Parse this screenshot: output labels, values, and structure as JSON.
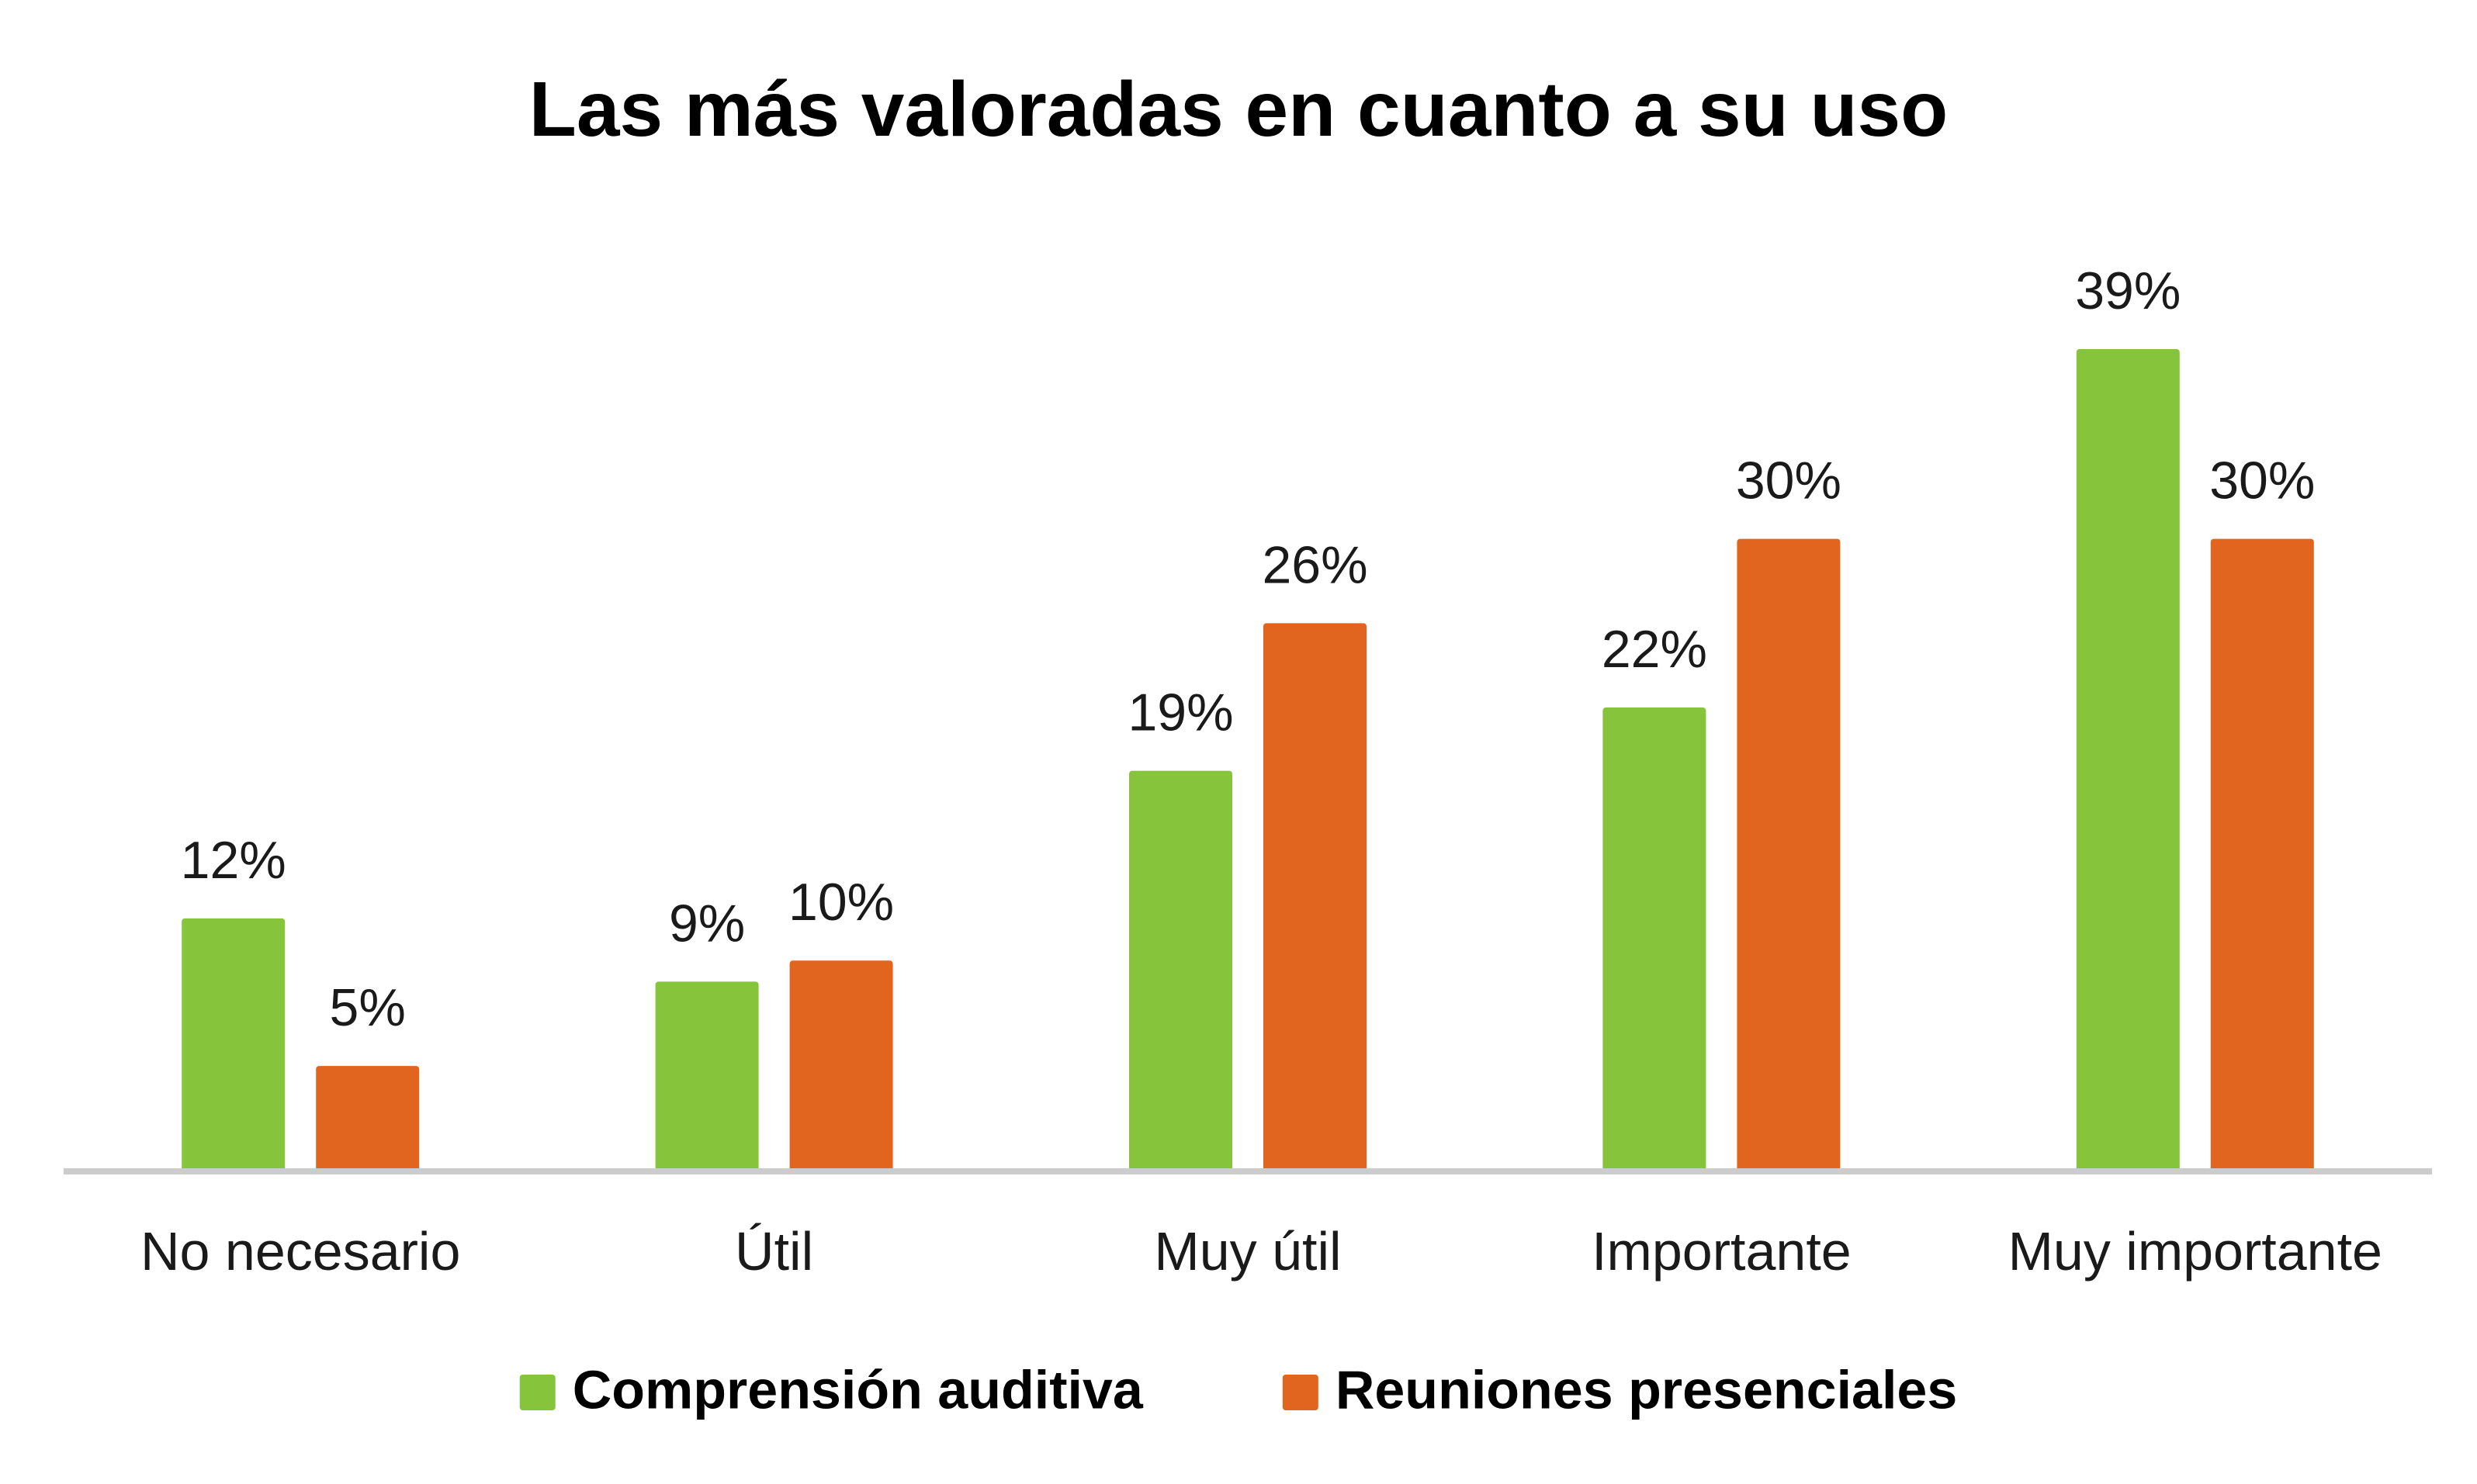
{
  "chart_data": {
    "type": "bar",
    "title": "Las más valoradas en cuanto a su uso",
    "xlabel": "",
    "ylabel": "",
    "categories": [
      "No necesario",
      "Útil",
      "Muy útil",
      "Importante",
      "Muy importante"
    ],
    "series": [
      {
        "name": "Comprensión auditiva",
        "values": [
          12,
          9,
          19,
          22,
          39
        ],
        "labels": [
          "12%",
          "9%",
          "19%",
          "22%",
          "39%"
        ],
        "color": "#86C53B"
      },
      {
        "name": "Reuniones presenciales",
        "values": [
          5,
          10,
          26,
          30,
          30
        ],
        "labels": [
          "5%",
          "10%",
          "26%",
          "30%",
          "30%"
        ],
        "color": "#E2651F"
      }
    ],
    "ylim": [
      0,
      39
    ],
    "grid": false,
    "legend": "bottom",
    "axis_color": "#CCCCCC"
  }
}
